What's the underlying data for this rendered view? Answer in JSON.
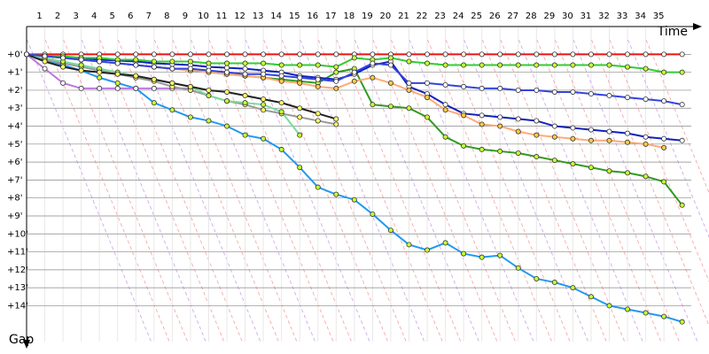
{
  "chart_data": {
    "type": "line",
    "x_label": "Time",
    "y_label": "Gap",
    "x": [
      0,
      1,
      2,
      3,
      4,
      5,
      6,
      7,
      8,
      9,
      10,
      11,
      12,
      13,
      14,
      15,
      16,
      17,
      18,
      19,
      20,
      21,
      22,
      23,
      24,
      25,
      26,
      27,
      28,
      29,
      30,
      31,
      32,
      33,
      34,
      35,
      36
    ],
    "xlim": [
      0,
      36.6
    ],
    "xticks": [
      1,
      2,
      3,
      4,
      5,
      6,
      7,
      8,
      9,
      10,
      11,
      12,
      13,
      14,
      15,
      16,
      17,
      18,
      19,
      20,
      21,
      22,
      23,
      24,
      25,
      26,
      27,
      28,
      29,
      30,
      31,
      32,
      33,
      34,
      35
    ],
    "ylim": [
      -1.3,
      16
    ],
    "yticks": [
      {
        "value": 0,
        "label": "+0'"
      },
      {
        "value": 1,
        "label": "+1'"
      },
      {
        "value": 2,
        "label": "+2'"
      },
      {
        "value": 3,
        "label": "+3'"
      },
      {
        "value": 4,
        "label": "+4'"
      },
      {
        "value": 5,
        "label": "+5'"
      },
      {
        "value": 6,
        "label": "+6'"
      },
      {
        "value": 7,
        "label": "+7'"
      },
      {
        "value": 8,
        "label": "+8'"
      },
      {
        "value": 9,
        "label": "+9'"
      },
      {
        "value": 10,
        "label": "+10'"
      },
      {
        "value": 11,
        "label": "+11'"
      },
      {
        "value": 12,
        "label": "+12'"
      },
      {
        "value": 13,
        "label": "+13'"
      },
      {
        "value": 14,
        "label": "+14'"
      }
    ],
    "grid": true,
    "series": [
      {
        "color": "#ee1111",
        "marker_color": "#ffffff",
        "values": [
          0,
          0,
          0,
          0,
          0,
          0,
          0,
          0,
          0,
          0,
          0,
          0,
          0,
          0,
          0,
          0,
          0,
          0,
          0,
          0,
          0,
          0,
          0,
          0,
          0,
          0,
          0,
          0,
          0,
          0,
          0,
          0,
          0,
          0,
          0,
          0,
          0
        ]
      },
      {
        "color": "#2299ee",
        "marker_color": "#ccff33",
        "values": [
          0,
          0.3,
          0.6,
          0.9,
          1.3,
          1.6,
          1.9,
          2.7,
          3.1,
          3.5,
          3.7,
          4.0,
          4.5,
          4.7,
          5.3,
          6.3,
          7.4,
          7.8,
          8.1,
          8.9,
          9.8,
          10.6,
          10.9,
          10.5,
          11.1,
          11.3,
          11.2,
          11.9,
          12.5,
          12.7,
          13.0,
          13.5,
          14.0,
          14.2,
          14.4,
          14.6,
          14.9
        ]
      },
      {
        "color": "#339922",
        "marker_color": "#ccff33",
        "values": [
          0,
          0.1,
          0.2,
          0.3,
          0.4,
          0.5,
          0.6,
          0.7,
          0.8,
          0.9,
          1.0,
          1.1,
          1.2,
          1.3,
          1.4,
          1.5,
          1.6,
          1.0,
          0.8,
          2.8,
          2.9,
          3.0,
          3.5,
          4.6,
          5.1,
          5.3,
          5.4,
          5.5,
          5.7,
          5.9,
          6.1,
          6.3,
          6.5,
          6.6,
          6.8,
          7.1,
          8.4
        ]
      },
      {
        "color": "#1122bb",
        "marker_color": "#ffffff",
        "values": [
          0,
          0.1,
          0.15,
          0.2,
          0.3,
          0.35,
          0.4,
          0.5,
          0.55,
          0.6,
          0.7,
          0.75,
          0.8,
          0.9,
          1.0,
          1.2,
          1.3,
          1.4,
          1.1,
          0.6,
          0.4,
          1.8,
          2.2,
          2.8,
          3.3,
          3.4,
          3.5,
          3.6,
          3.7,
          4.0,
          4.1,
          4.2,
          4.3,
          4.4,
          4.6,
          4.7,
          4.8
        ]
      },
      {
        "color": "#ffaa77",
        "marker_color": "#ffcc44",
        "values": [
          0,
          0.1,
          0.2,
          0.3,
          0.4,
          0.5,
          0.6,
          0.7,
          0.8,
          0.9,
          1.0,
          1.1,
          1.2,
          1.3,
          1.5,
          1.6,
          1.8,
          1.9,
          1.5,
          1.3,
          1.6,
          2.0,
          2.4,
          3.1,
          3.4,
          3.9,
          4.0,
          4.3,
          4.5,
          4.6,
          4.7,
          4.8,
          4.8,
          4.9,
          5.0,
          5.2,
          null
        ]
      },
      {
        "color": "#bb77dd",
        "marker_color": "#ffffff",
        "values": [
          0,
          0.8,
          1.6,
          1.9,
          1.9,
          1.9,
          1.9,
          1.9,
          1.9,
          1.9,
          null,
          null,
          null,
          null,
          null,
          null,
          null,
          null,
          null,
          null,
          null,
          null,
          null,
          null,
          null,
          null,
          null,
          null,
          null,
          null,
          null,
          null,
          null,
          null,
          null,
          null,
          null
        ]
      },
      {
        "color": "#33cc33",
        "marker_color": "#ccff33",
        "values": [
          0,
          0.1,
          0.1,
          0.2,
          0.2,
          0.3,
          0.3,
          0.4,
          0.4,
          0.4,
          0.5,
          0.5,
          0.5,
          0.5,
          0.6,
          0.6,
          0.6,
          0.7,
          0.2,
          0.3,
          0.2,
          0.4,
          0.5,
          0.6,
          0.6,
          0.6,
          0.6,
          0.6,
          0.6,
          0.6,
          0.6,
          0.6,
          0.6,
          0.7,
          0.8,
          1.0,
          1.0
        ]
      },
      {
        "color": "#999999",
        "marker_color": "#ffff66",
        "values": [
          0,
          0.3,
          0.5,
          0.7,
          0.9,
          1.1,
          1.3,
          1.5,
          1.8,
          2.0,
          2.3,
          2.6,
          2.8,
          3.1,
          3.3,
          3.5,
          3.7,
          3.9,
          null,
          null,
          null,
          null,
          null,
          null,
          null,
          null,
          null,
          null,
          null,
          null,
          null,
          null,
          null,
          null,
          null,
          null,
          null
        ]
      },
      {
        "color": "#77dd99",
        "marker_color": "#ccff33",
        "values": [
          0,
          0.2,
          0.4,
          0.6,
          0.8,
          1.0,
          1.2,
          1.4,
          1.6,
          1.8,
          2.3,
          2.6,
          2.7,
          2.8,
          3.2,
          4.5,
          null,
          null,
          null,
          null,
          null,
          null,
          null,
          null,
          null,
          null,
          null,
          null,
          null,
          null,
          null,
          null,
          null,
          null,
          null,
          null,
          null
        ]
      },
      {
        "color": "#222222",
        "marker_color": "#ffff66",
        "values": [
          0,
          0.4,
          0.7,
          0.9,
          1.0,
          1.1,
          1.2,
          1.4,
          1.6,
          1.8,
          2.0,
          2.1,
          2.3,
          2.5,
          2.7,
          3.0,
          3.3,
          3.6,
          null,
          null,
          null,
          null,
          null,
          null,
          null,
          null,
          null,
          null,
          null,
          null,
          null,
          null,
          null,
          null,
          null,
          null,
          null
        ]
      },
      {
        "color": "#3344dd",
        "marker_color": "#ffffff",
        "values": [
          0,
          0.1,
          0.2,
          0.3,
          0.4,
          0.5,
          0.6,
          0.7,
          0.8,
          0.8,
          0.9,
          1.0,
          1.1,
          1.1,
          1.2,
          1.3,
          1.4,
          1.5,
          1.0,
          0.5,
          0.6,
          1.6,
          1.6,
          1.7,
          1.8,
          1.9,
          1.9,
          2.0,
          2.0,
          2.1,
          2.1,
          2.2,
          2.3,
          2.4,
          2.5,
          2.6,
          2.8
        ]
      }
    ]
  }
}
